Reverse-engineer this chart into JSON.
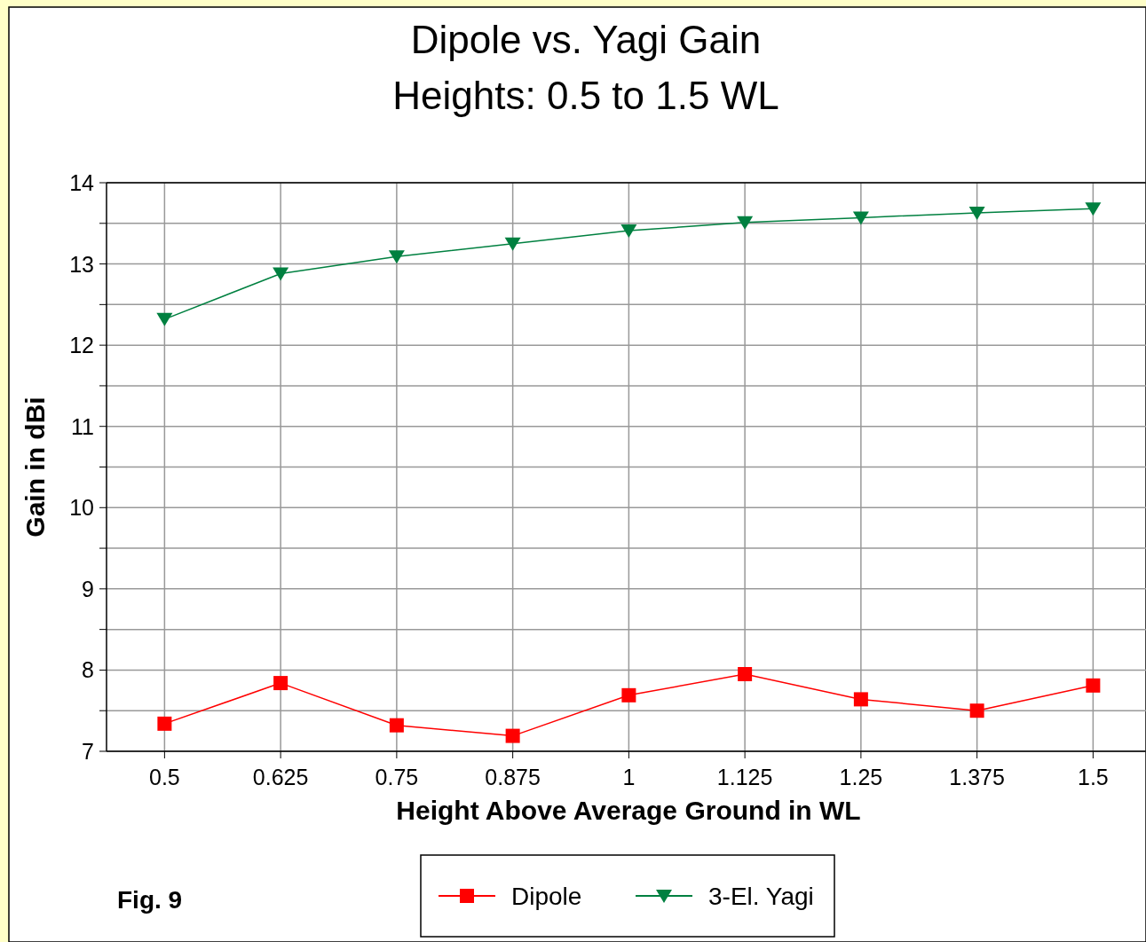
{
  "chart_data": {
    "type": "line",
    "title": "Dipole vs. Yagi Gain",
    "subtitle": "Heights:  0.5 to 1.5 WL",
    "xlabel": "Height Above Average Ground in WL",
    "ylabel": "Gain in dBi",
    "categories": [
      "0.5",
      "0.625",
      "0.75",
      "0.875",
      "1",
      "1.125",
      "1.25",
      "1.375",
      "1.5"
    ],
    "series": [
      {
        "name": "Dipole",
        "color": "#ff0000",
        "marker": "square",
        "values": [
          7.34,
          7.84,
          7.32,
          7.19,
          7.69,
          7.95,
          7.64,
          7.5,
          7.81
        ]
      },
      {
        "name": "3-El. Yagi",
        "color": "#008040",
        "marker": "triangle",
        "values": [
          12.32,
          12.88,
          13.09,
          13.25,
          13.41,
          13.51,
          13.57,
          13.63,
          13.68
        ]
      }
    ],
    "ylim": [
      7,
      14
    ],
    "yticks": [
      7,
      {
        "value": 7.5,
        "label": null
      },
      8,
      {
        "value": 8.5,
        "label": null
      },
      9,
      {
        "value": 9.5,
        "label": null
      },
      10,
      {
        "value": 10.5,
        "label": null
      },
      11,
      {
        "value": 11.5,
        "label": null
      },
      12,
      {
        "value": 12.5,
        "label": null
      },
      13,
      {
        "value": 13.5,
        "label": null
      },
      14
    ],
    "grid": true,
    "legend": "bottom",
    "annotations": [
      "Fig. 9"
    ]
  }
}
